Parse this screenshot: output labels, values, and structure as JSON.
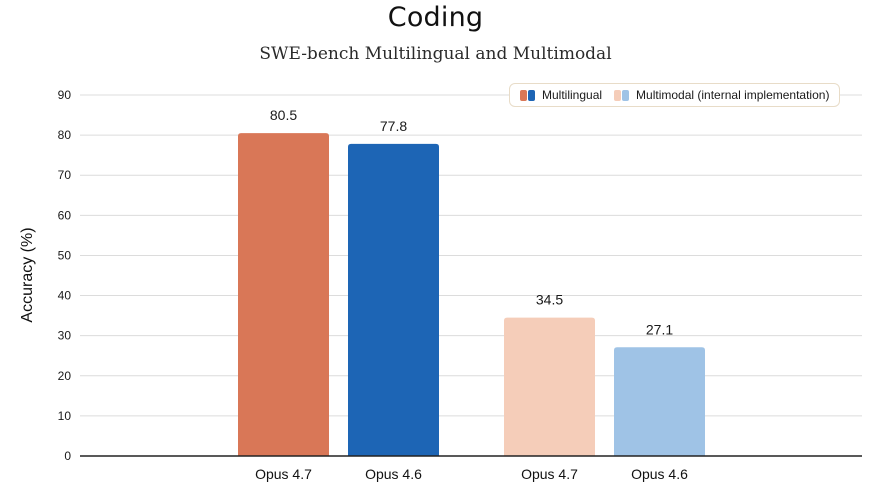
{
  "chart_data": {
    "type": "bar",
    "title": "Coding",
    "subtitle": "SWE-bench Multilingual and Multimodal",
    "ylabel": "Accuracy (%)",
    "xlabel": "",
    "ylim": [
      0,
      90
    ],
    "yticks": [
      "0",
      "10",
      "20",
      "30",
      "40",
      "50",
      "60",
      "70",
      "80",
      "90"
    ],
    "grid": true,
    "legend_position": "top-right",
    "groups": [
      {
        "name": "Multilingual",
        "bars": [
          {
            "category": "Opus 4.7",
            "value": 80.5,
            "label": "80.5",
            "color": "#d97757"
          },
          {
            "category": "Opus 4.6",
            "value": 77.8,
            "label": "77.8",
            "color": "#1d65b5"
          }
        ]
      },
      {
        "name": "Multimodal (internal implementation)",
        "bars": [
          {
            "category": "Opus 4.7",
            "value": 34.5,
            "label": "34.5",
            "color": "#f5cdb9"
          },
          {
            "category": "Opus 4.6",
            "value": 27.1,
            "label": "27.1",
            "color": "#9fc3e6"
          }
        ]
      }
    ],
    "legend": [
      {
        "label": "Multilingual",
        "colors": [
          "#d97757",
          "#1d65b5"
        ]
      },
      {
        "label": "Multimodal (internal implementation)",
        "colors": [
          "#f5cdb9",
          "#9fc3e6"
        ]
      }
    ]
  }
}
